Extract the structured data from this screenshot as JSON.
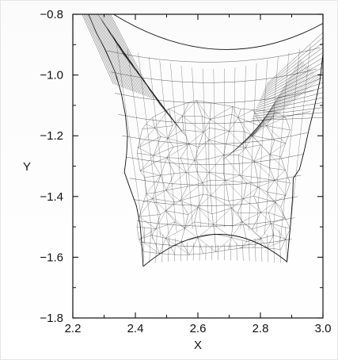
{
  "chart_data": {
    "type": "mesh",
    "title": "",
    "xlabel": "X",
    "ylabel": "Y",
    "xlim": [
      2.2,
      3.0
    ],
    "ylim": [
      -1.8,
      -0.8
    ],
    "x_ticks": [
      "2.2",
      "2.4",
      "2.6",
      "2.8",
      "3.0"
    ],
    "y_ticks": [
      "−0.8",
      "−1.0",
      "−1.2",
      "−1.4",
      "−1.6",
      "−1.8"
    ],
    "grid": false,
    "mesh_region": {
      "top_left_x": 2.25,
      "top_right_x": 3.0,
      "upper_center_dip_y": -0.99,
      "left_tip": [
        2.425,
        -1.63
      ],
      "right_tip": [
        2.885,
        -1.615
      ],
      "bottom_arc_min_y": -1.5
    }
  },
  "colors": {
    "ink": "#111111",
    "background": "#ffffff"
  }
}
